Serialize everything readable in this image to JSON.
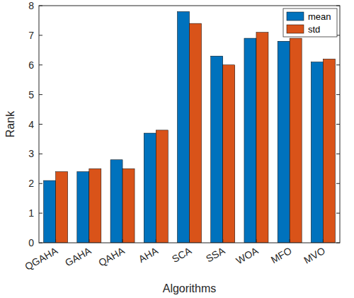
{
  "chart_data": {
    "type": "bar",
    "x_label": "Algorithms",
    "y_label": "Rank",
    "categories": [
      "QGAHA",
      "GAHA",
      "QAHA",
      "AHA",
      "SCA",
      "SSA",
      "WOA",
      "MFO",
      "MVO"
    ],
    "series": [
      {
        "name": "mean",
        "color": "#0072bd",
        "values": [
          2.1,
          2.4,
          2.8,
          3.7,
          7.8,
          6.3,
          6.9,
          6.8,
          6.1
        ]
      },
      {
        "name": "std",
        "color": "#d95319",
        "values": [
          2.4,
          2.5,
          2.5,
          3.8,
          7.4,
          6.0,
          7.1,
          6.9,
          6.2
        ]
      }
    ],
    "ylim": [
      0,
      8
    ],
    "yticks": [
      0,
      1,
      2,
      3,
      4,
      5,
      6,
      7,
      8
    ],
    "legend": "northeast",
    "grid": false
  }
}
